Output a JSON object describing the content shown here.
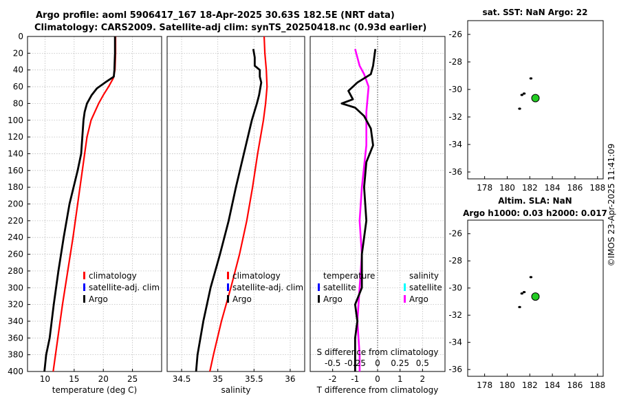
{
  "header": {
    "line1": "Argo profile: aoml 5906417_167 18-Apr-2025 30.63S 182.5E (NRT data)",
    "line2": "Climatology: CARS2009. Satellite-adj clim: synTS_20250418.nc (0.93d earlier)"
  },
  "watermark": "©IMOS 23-Apr-2025 11:41:09",
  "colors": {
    "climatology": "#ff0000",
    "satellite": "#0000ff",
    "argo": "#000000",
    "satellite_s": "#00ffff",
    "argo_s": "#ff00ff",
    "float_marker": "#22cc22"
  },
  "chart_data": [
    {
      "type": "line",
      "id": "temperature",
      "xlabel": "temperature (deg C)",
      "ylabel": "",
      "xlim": [
        7,
        30
      ],
      "ylim": [
        400,
        0
      ],
      "xticks": [
        10,
        15,
        20,
        25
      ],
      "yticks": [
        0,
        20,
        40,
        60,
        80,
        100,
        120,
        140,
        160,
        180,
        200,
        220,
        240,
        260,
        280,
        300,
        320,
        340,
        360,
        380,
        400
      ],
      "legend": [
        "climatology",
        "satellite-adj. clim",
        "Argo"
      ],
      "series": [
        {
          "name": "climatology",
          "depth": [
            0,
            20,
            40,
            50,
            60,
            70,
            80,
            100,
            120,
            140,
            160,
            200,
            240,
            280,
            320,
            360,
            400
          ],
          "values": [
            22.1,
            22.1,
            22.0,
            21.7,
            20.9,
            20.0,
            19.2,
            17.9,
            17.2,
            16.8,
            16.4,
            15.6,
            14.8,
            13.9,
            13.0,
            12.2,
            11.4
          ]
        },
        {
          "name": "Argo",
          "depth": [
            0,
            20,
            40,
            48,
            55,
            62,
            70,
            80,
            90,
            100,
            120,
            140,
            160,
            200,
            240,
            280,
            320,
            360,
            380,
            400
          ],
          "values": [
            22.0,
            22.0,
            21.9,
            21.8,
            20.3,
            18.9,
            18.0,
            17.2,
            16.8,
            16.6,
            16.4,
            16.2,
            15.6,
            14.2,
            13.2,
            12.3,
            11.5,
            10.8,
            10.2,
            9.9
          ]
        }
      ]
    },
    {
      "type": "line",
      "id": "salinity",
      "xlabel": "salinity",
      "xlim": [
        34.3,
        36.2
      ],
      "ylim": [
        400,
        0
      ],
      "xticks": [
        34.5,
        35,
        35.5,
        36
      ],
      "legend": [
        "climatology",
        "satellite-adj. clim",
        "Argo"
      ],
      "series": [
        {
          "name": "climatology",
          "depth": [
            0,
            20,
            40,
            60,
            80,
            100,
            140,
            180,
            220,
            260,
            300,
            340,
            380,
            400
          ],
          "values": [
            35.64,
            35.65,
            35.67,
            35.68,
            35.66,
            35.63,
            35.55,
            35.48,
            35.4,
            35.3,
            35.18,
            35.05,
            34.94,
            34.89
          ]
        },
        {
          "name": "Argo",
          "depth": [
            15,
            25,
            35,
            40,
            48,
            55,
            60,
            70,
            80,
            100,
            140,
            180,
            220,
            260,
            300,
            340,
            380,
            400
          ],
          "values": [
            35.49,
            35.51,
            35.51,
            35.58,
            35.58,
            35.6,
            35.59,
            35.57,
            35.54,
            35.47,
            35.36,
            35.25,
            35.15,
            35.03,
            34.9,
            34.8,
            34.72,
            34.7
          ]
        }
      ]
    },
    {
      "type": "line",
      "id": "difference",
      "xlabel": "T difference from climatology",
      "xlabel_top": "S difference from climatology",
      "xlim": [
        -3,
        3
      ],
      "ylim": [
        400,
        0
      ],
      "xticks": [
        -2,
        -1,
        0,
        1,
        2
      ],
      "xtick_labels_top": [
        "-0.5",
        "-0.25",
        "0",
        "0.25",
        "0.5"
      ],
      "xtick_values_top": [
        -2,
        -1,
        0,
        1,
        2
      ],
      "legend_t": {
        "title": "temperature",
        "items": [
          "satellite",
          "Argo"
        ]
      },
      "legend_s": {
        "title": "salinity",
        "items": [
          "satellite",
          "Argo"
        ]
      },
      "series": [
        {
          "name": "T Argo",
          "depth": [
            15,
            25,
            35,
            45,
            55,
            65,
            75,
            80,
            85,
            95,
            110,
            130,
            150,
            180,
            220,
            260,
            300,
            320,
            340,
            360,
            380,
            400
          ],
          "values": [
            -0.1,
            -0.15,
            -0.2,
            -0.3,
            -0.9,
            -1.3,
            -1.1,
            -1.6,
            -1.0,
            -0.6,
            -0.3,
            -0.2,
            -0.5,
            -0.6,
            -0.5,
            -0.7,
            -0.7,
            -1.0,
            -0.9,
            -1.0,
            -1.0,
            -1.0
          ]
        },
        {
          "name": "S Argo",
          "depth": [
            15,
            25,
            35,
            45,
            60,
            90,
            130,
            180,
            220,
            260,
            300,
            340,
            380,
            400
          ],
          "values": [
            -1.0,
            -0.9,
            -0.8,
            -0.6,
            -0.4,
            -0.5,
            -0.5,
            -0.7,
            -0.8,
            -0.7,
            -0.8,
            -0.9,
            -0.8,
            -0.8
          ]
        },
        {
          "name": "zero line",
          "depth": [
            0,
            400
          ],
          "values": [
            0,
            0
          ]
        }
      ]
    },
    {
      "type": "scatter",
      "id": "sst-map",
      "title": "sat. SST: NaN Argo: 22",
      "xlim": [
        176.5,
        188.5
      ],
      "ylim": [
        -36.5,
        -25
      ],
      "xticks": [
        178,
        180,
        182,
        184,
        186,
        188
      ],
      "yticks": [
        -26,
        -28,
        -30,
        -32,
        -34,
        -36
      ],
      "points": [
        {
          "x": 182.1,
          "y": -29.2
        },
        {
          "x": 181.5,
          "y": -30.3
        },
        {
          "x": 181.3,
          "y": -30.4
        },
        {
          "x": 181.1,
          "y": -31.4
        }
      ],
      "float_position": {
        "x": 182.5,
        "y": -30.63
      }
    },
    {
      "type": "scatter",
      "id": "sla-map",
      "title": "Altim. SLA: NaN",
      "subtitle": "Argo h1000: 0.03 h2000: 0.017",
      "xlim": [
        176.5,
        188.5
      ],
      "ylim": [
        -36.5,
        -25
      ],
      "xticks": [
        178,
        180,
        182,
        184,
        186,
        188
      ],
      "yticks": [
        -26,
        -28,
        -30,
        -32,
        -34,
        -36
      ],
      "points": [
        {
          "x": 182.1,
          "y": -29.2
        },
        {
          "x": 181.5,
          "y": -30.3
        },
        {
          "x": 181.3,
          "y": -30.4
        },
        {
          "x": 181.1,
          "y": -31.4
        }
      ],
      "float_position": {
        "x": 182.5,
        "y": -30.63
      }
    }
  ]
}
